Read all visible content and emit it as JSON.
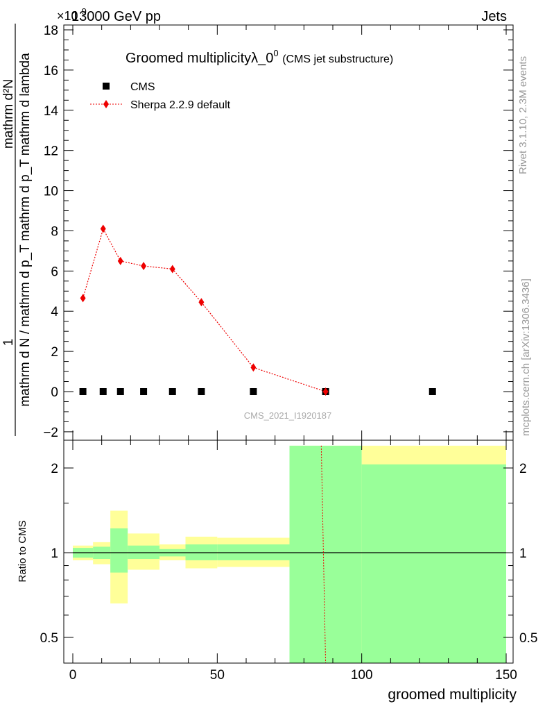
{
  "header": {
    "left": "13000 GeV pp",
    "right": "Jets",
    "exponent": "×10",
    "exponent_power": "9"
  },
  "side_labels": {
    "rivet": "Rivet 3.1.10,  2.3M events",
    "mcplots": "mcplots.cern.ch [arXiv:1306.3436]"
  },
  "chart_data": [
    {
      "type": "scatter",
      "title": "Groomed multiplicityλ_0",
      "title_sup": "0",
      "subtitle": "(CMS jet substructure)",
      "ylabel_numer": "1",
      "ylabel_denom": "mathrm d N / mathrm d p_T mathrm d p_T mathrm d lambda",
      "ylabel_top": "mathrm d²N",
      "ylim": [
        -2.4,
        18.3
      ],
      "xlim": [
        -5,
        150
      ],
      "yticks": [
        -2,
        0,
        2,
        4,
        6,
        8,
        10,
        12,
        14,
        16,
        18
      ],
      "ytick_labels": [
        "−2",
        "0",
        "2",
        "4",
        "6",
        "8",
        "10",
        "12",
        "14",
        "16",
        "18"
      ],
      "watermark": "CMS_2021_I1920187",
      "legend_position": "top-left",
      "series": [
        {
          "name": "CMS",
          "color": "#000000",
          "marker": "square",
          "x": [
            3.5,
            10.5,
            16.5,
            24.5,
            34.5,
            44.5,
            62.5,
            87.5,
            124.5
          ],
          "y": [
            0,
            0,
            0,
            0,
            0,
            0,
            0,
            0,
            0
          ]
        },
        {
          "name": "Sherpa 2.2.9 default",
          "color": "#ee0000",
          "marker": "diamond",
          "line": "dotted",
          "x": [
            3.5,
            10.5,
            16.5,
            24.5,
            34.5,
            44.5,
            62.5,
            87.5
          ],
          "y": [
            4.65,
            8.1,
            6.5,
            6.25,
            6.1,
            4.45,
            1.2,
            0.0
          ]
        }
      ]
    },
    {
      "type": "line",
      "ylabel": "Ratio to CMS",
      "xlabel": "groomed multiplicity",
      "ylog": true,
      "ylim": [
        0.4,
        2.4
      ],
      "xlim": [
        -5,
        150
      ],
      "xticks": [
        0,
        50,
        100,
        150
      ],
      "xtick_labels": [
        "0",
        "50",
        "100",
        "150"
      ],
      "yticks": [
        0.5,
        1,
        2
      ],
      "ytick_labels": [
        "0.5",
        "1",
        "2"
      ],
      "bands": {
        "colors": {
          "inner": "#99ff99",
          "outer": "#ffff99"
        },
        "bins": [
          {
            "x0": 0,
            "x1": 7,
            "inner": [
              0.96,
              1.04
            ],
            "outer": [
              0.94,
              1.06
            ]
          },
          {
            "x0": 7,
            "x1": 13,
            "inner": [
              0.95,
              1.05
            ],
            "outer": [
              0.91,
              1.09
            ]
          },
          {
            "x0": 13,
            "x1": 19,
            "inner": [
              0.85,
              1.22
            ],
            "outer": [
              0.66,
              1.41
            ]
          },
          {
            "x0": 19,
            "x1": 30,
            "inner": [
              0.95,
              1.06
            ],
            "outer": [
              0.87,
              1.17
            ]
          },
          {
            "x0": 30,
            "x1": 39,
            "inner": [
              0.97,
              1.03
            ],
            "outer": [
              0.94,
              1.07
            ]
          },
          {
            "x0": 39,
            "x1": 50,
            "inner": [
              0.94,
              1.07
            ],
            "outer": [
              0.88,
              1.14
            ]
          },
          {
            "x0": 50,
            "x1": 75,
            "inner": [
              0.94,
              1.07
            ],
            "outer": [
              0.89,
              1.13
            ]
          },
          {
            "x0": 75,
            "x1": 100,
            "inner": [
              0.4,
              2.4
            ],
            "outer": [
              0.4,
              2.4
            ]
          },
          {
            "x0": 100,
            "x1": 150,
            "inner": [
              0.4,
              2.06
            ],
            "outer": [
              0.4,
              2.4
            ]
          }
        ]
      },
      "reference_value": 1,
      "ratio_line": {
        "name": "Sherpa 2.2.9 default",
        "x": [
          86,
          87.5
        ],
        "y": [
          2.4,
          0.4
        ],
        "color": "#ee0000"
      }
    }
  ]
}
